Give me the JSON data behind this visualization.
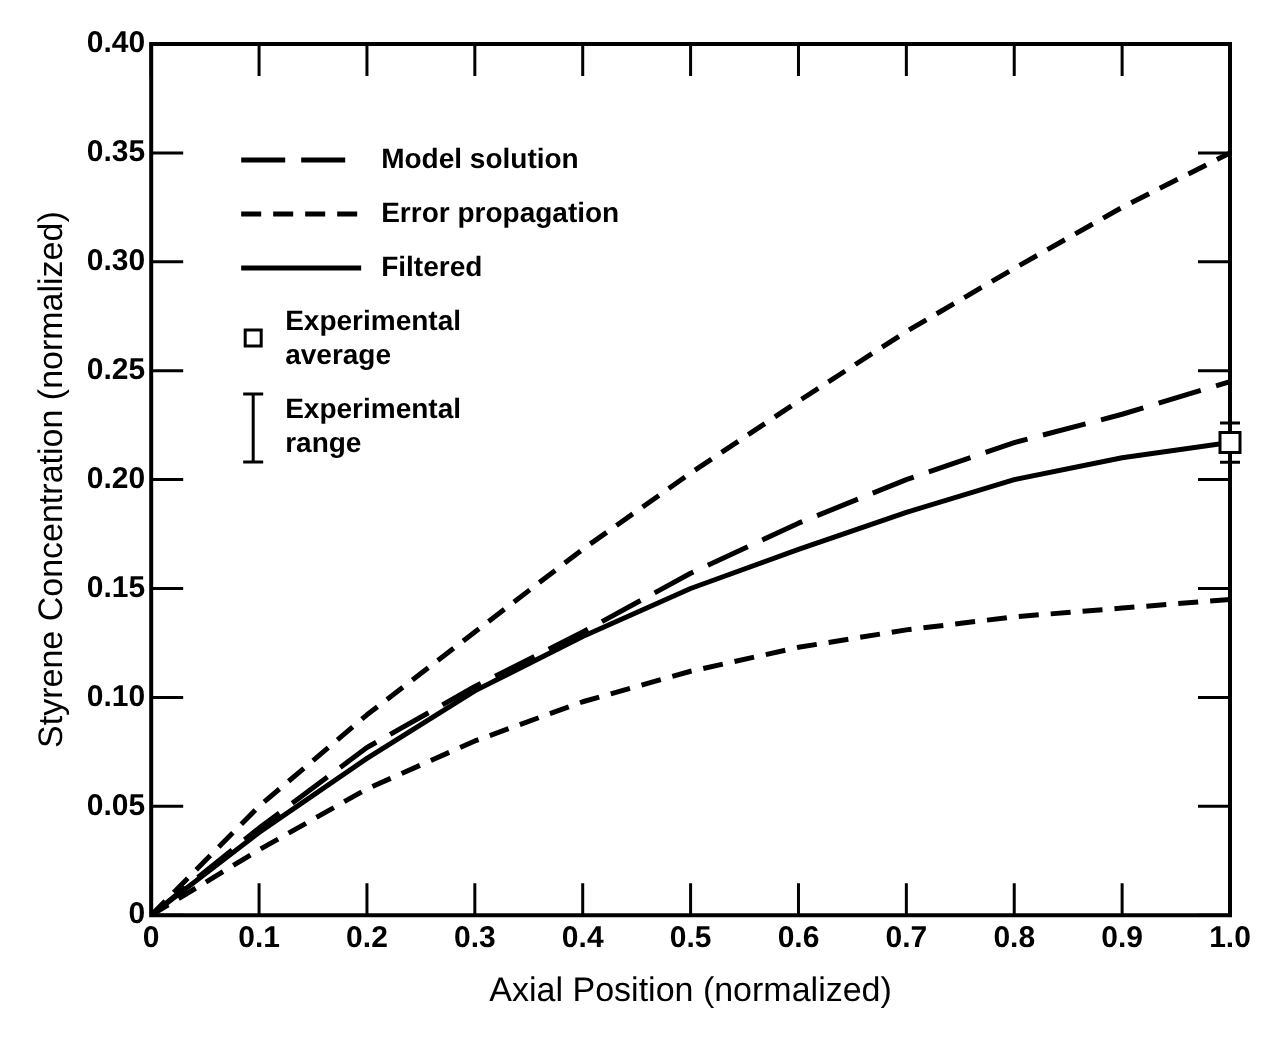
{
  "chart_data": {
    "type": "line",
    "xlabel": "Axial Position (normalized)",
    "ylabel": "Styrene Concentration (normalized)",
    "xlim": [
      0,
      1
    ],
    "ylim": [
      0,
      0.4
    ],
    "xticks": [
      0,
      0.1,
      0.2,
      0.3,
      0.4,
      0.5,
      0.6,
      0.7,
      0.8,
      0.9,
      {
        "value": 1,
        "label": "1.0"
      }
    ],
    "yticks": [
      0,
      0.05,
      {
        "value": 0.1,
        "label": "0.10"
      },
      0.15,
      {
        "value": 0.2,
        "label": "0.20"
      },
      0.25,
      {
        "value": 0.3,
        "label": "0.30"
      },
      0.35,
      {
        "value": 0.4,
        "label": "0.40"
      }
    ],
    "grid": false,
    "legend": "top left",
    "x": [
      0,
      0.1,
      0.2,
      0.3,
      0.4,
      0.5,
      0.6,
      0.7,
      0.8,
      0.9,
      1
    ],
    "series": [
      {
        "name": "Model solution",
        "color": "#000000",
        "line_style": "dashed",
        "marker": "none",
        "values": [
          0,
          0.04,
          0.077,
          0.105,
          0.13,
          0.157,
          0.18,
          0.2,
          0.217,
          0.23,
          0.245
        ]
      },
      {
        "name": "Error propagation",
        "color": "#000000",
        "line_style": "dashed",
        "marker": "none",
        "values": [
          0,
          0.05,
          0.092,
          0.13,
          0.168,
          0.203,
          0.236,
          0.268,
          0.297,
          0.325,
          0.35
        ]
      },
      {
        "color": "#000000",
        "line_style": "dashed",
        "marker": "none",
        "values": [
          0,
          0.03,
          0.058,
          0.08,
          0.098,
          0.112,
          0.123,
          0.131,
          0.137,
          0.141,
          0.145
        ]
      },
      {
        "name": "Filtered",
        "color": "#000000",
        "line_style": "solid",
        "marker": "none",
        "values": [
          0,
          0.038,
          0.072,
          0.103,
          0.128,
          0.15,
          0.168,
          0.185,
          0.2,
          0.21,
          0.217
        ]
      },
      {
        "name": "Experimental average",
        "type": "scatter",
        "color": "#000000",
        "marker": "square",
        "x": [
          1
        ],
        "values": [
          0.217
        ],
        "errors": [
          [
            0.208,
            0.226
          ]
        ]
      }
    ],
    "annotations": [
      "Experimental range"
    ]
  }
}
